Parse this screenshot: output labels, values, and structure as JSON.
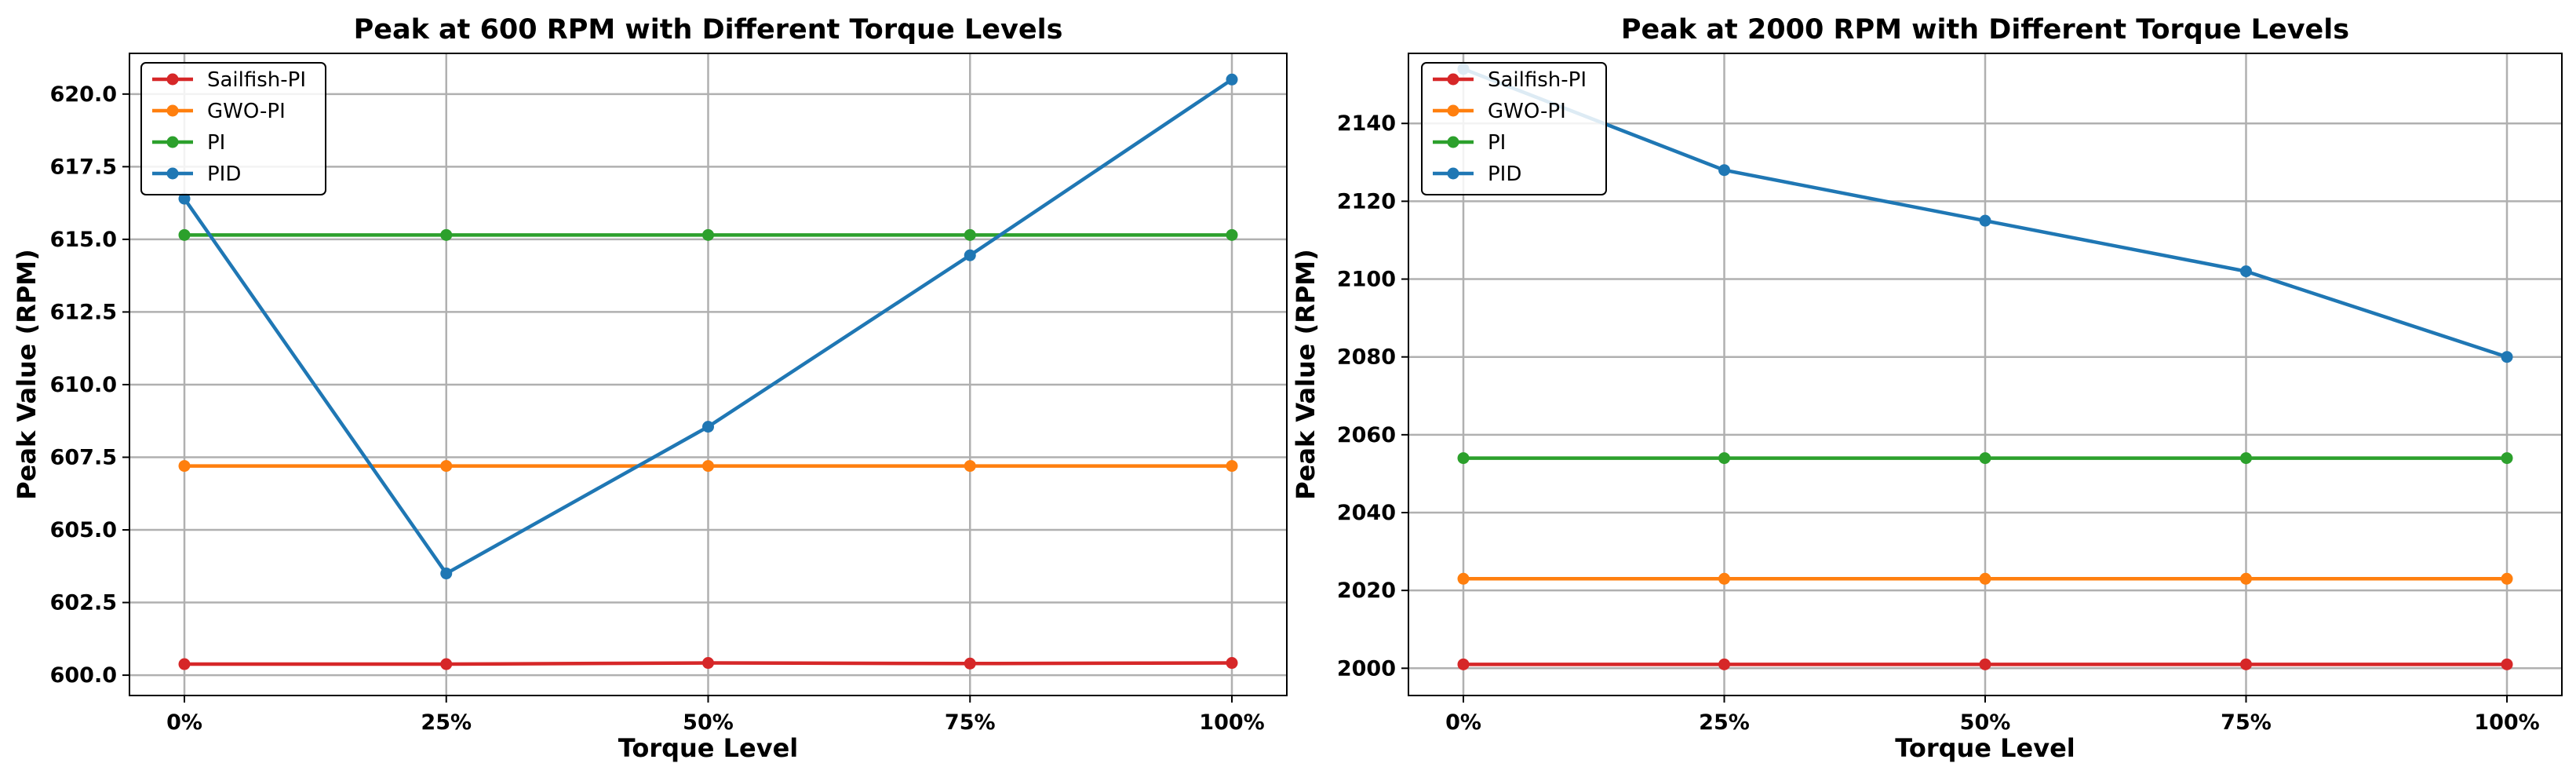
{
  "chart_data": [
    {
      "type": "line",
      "title": "Peak at 600 RPM with Different Torque Levels",
      "xlabel": "Torque Level",
      "ylabel": "Peak Value (RPM)",
      "categories": [
        "0%",
        "25%",
        "50%",
        "75%",
        "100%"
      ],
      "ylim": [
        599.3,
        621.4
      ],
      "yticks": [
        600.0,
        602.5,
        605.0,
        607.5,
        610.0,
        612.5,
        615.0,
        617.5,
        620.0
      ],
      "ytick_labels": [
        "600.0",
        "602.5",
        "605.0",
        "607.5",
        "610.0",
        "612.5",
        "615.0",
        "617.5",
        "620.0"
      ],
      "grid": true,
      "legend_position": "upper-left",
      "series": [
        {
          "name": "Sailfish-PI",
          "color": "#d62728",
          "values": [
            600.38,
            600.38,
            600.42,
            600.4,
            600.42
          ]
        },
        {
          "name": "GWO-PI",
          "color": "#ff7f0e",
          "values": [
            607.2,
            607.2,
            607.2,
            607.2,
            607.2
          ]
        },
        {
          "name": "PI",
          "color": "#2ca02c",
          "values": [
            615.15,
            615.15,
            615.15,
            615.15,
            615.15
          ]
        },
        {
          "name": "PID",
          "color": "#1f77b4",
          "values": [
            616.4,
            603.5,
            608.55,
            614.45,
            620.5
          ]
        }
      ]
    },
    {
      "type": "line",
      "title": "Peak at 2000 RPM with Different Torque Levels",
      "xlabel": "Torque Level",
      "ylabel": "Peak Value (RPM)",
      "categories": [
        "0%",
        "25%",
        "50%",
        "75%",
        "100%"
      ],
      "ylim": [
        1993,
        2158
      ],
      "yticks": [
        2000,
        2020,
        2040,
        2060,
        2080,
        2100,
        2120,
        2140
      ],
      "ytick_labels": [
        "2000",
        "2020",
        "2040",
        "2060",
        "2080",
        "2100",
        "2120",
        "2140"
      ],
      "grid": true,
      "legend_position": "upper-left",
      "series": [
        {
          "name": "Sailfish-PI",
          "color": "#d62728",
          "values": [
            2001,
            2001,
            2001,
            2001,
            2001
          ]
        },
        {
          "name": "GWO-PI",
          "color": "#ff7f0e",
          "values": [
            2023,
            2023,
            2023,
            2023,
            2023
          ]
        },
        {
          "name": "PI",
          "color": "#2ca02c",
          "values": [
            2054,
            2054,
            2054,
            2054,
            2054
          ]
        },
        {
          "name": "PID",
          "color": "#1f77b4",
          "values": [
            2154,
            2128,
            2115,
            2102,
            2080
          ]
        }
      ]
    }
  ]
}
